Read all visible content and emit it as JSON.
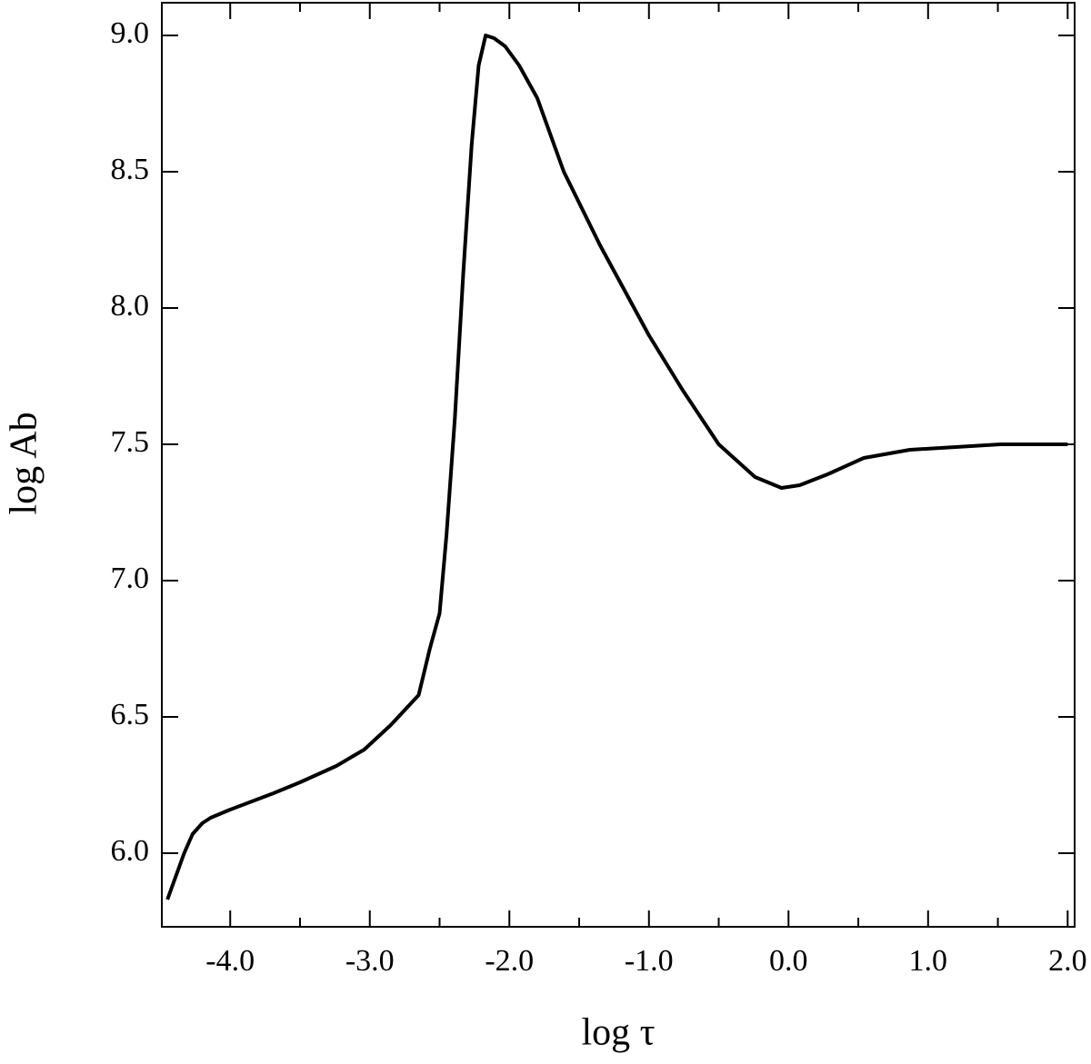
{
  "chart_data": {
    "type": "line",
    "xlabel": "log τ",
    "ylabel": "log Ab",
    "xlim": [
      -4.49,
      2.05
    ],
    "ylim": [
      5.73,
      9.12
    ],
    "xticks": [
      {
        "value": -4,
        "label": "-4.0"
      },
      {
        "value": -3,
        "label": "-3.0"
      },
      {
        "value": -2,
        "label": "-2.0"
      },
      {
        "value": -1,
        "label": "-1.0"
      },
      {
        "value": 0,
        "label": "0.0"
      },
      {
        "value": 1,
        "label": "1.0"
      },
      {
        "value": 2,
        "label": "2.0"
      }
    ],
    "xminorticks": [
      -3.5,
      -2.5,
      -1.5,
      -0.5,
      0.5,
      1.5
    ],
    "yticks": [
      {
        "value": 6,
        "label": "6.0"
      },
      6.5,
      {
        "value": 7,
        "label": "7.0"
      },
      7.5,
      {
        "value": 8,
        "label": "8.0"
      },
      8.5,
      {
        "value": 9,
        "label": "9.0"
      }
    ],
    "series": [
      {
        "color": "#000000",
        "x": [
          -4.45,
          -4.33,
          -4.27,
          -4.2,
          -4.14,
          -4.0,
          -3.69,
          -3.5,
          -3.24,
          -3.04,
          -2.85,
          -2.65,
          -2.57,
          -2.5,
          -2.45,
          -2.39,
          -2.33,
          -2.27,
          -2.22,
          -2.17,
          -2.11,
          -2.03,
          -1.93,
          -1.8,
          -1.61,
          -1.35,
          -1.0,
          -0.76,
          -0.5,
          -0.24,
          -0.05,
          0.08,
          0.28,
          0.54,
          0.87,
          1.52,
          2.0
        ],
        "values": [
          5.83,
          6.0,
          6.07,
          6.11,
          6.13,
          6.16,
          6.22,
          6.26,
          6.32,
          6.38,
          6.47,
          6.58,
          6.75,
          6.88,
          7.17,
          7.6,
          8.13,
          8.6,
          8.89,
          9.0,
          8.99,
          8.96,
          8.89,
          8.77,
          8.5,
          8.23,
          7.9,
          7.7,
          7.5,
          7.38,
          7.34,
          7.35,
          7.39,
          7.45,
          7.48,
          7.5,
          7.5
        ]
      }
    ]
  }
}
